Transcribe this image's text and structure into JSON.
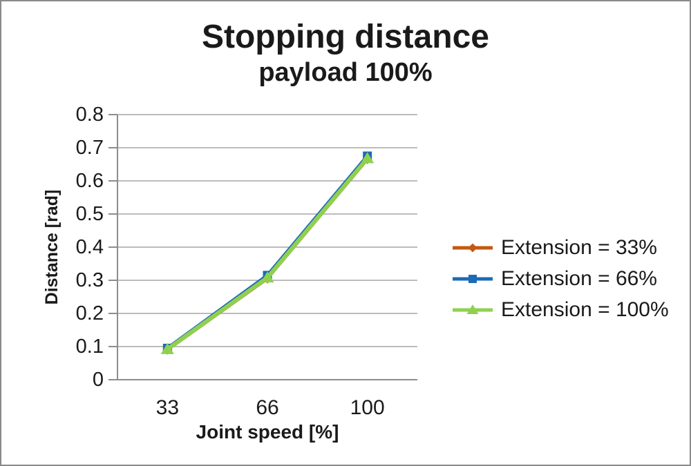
{
  "chart_data": {
    "type": "line",
    "title": "Stopping distance",
    "subtitle": "payload 100%",
    "xlabel": "Joint speed [%]",
    "ylabel": "Distance [rad]",
    "categories": [
      "33",
      "66",
      "100"
    ],
    "yticks": [
      "0",
      "0.1",
      "0.2",
      "0.3",
      "0.4",
      "0.5",
      "0.6",
      "0.7",
      "0.8"
    ],
    "ylim": [
      0,
      0.8
    ],
    "grid": "horizontal",
    "legend_position": "right",
    "colors": {
      "gridline": "#a6a6a6",
      "axis": "#8c8c8c",
      "text": "#1a1a1a"
    },
    "series": [
      {
        "name": "Extension = 33%",
        "color": "#c45911",
        "marker": "diamond",
        "values": [
          0.09,
          0.305,
          0.665
        ]
      },
      {
        "name": "Extension = 66%",
        "color": "#1b6bb8",
        "marker": "square",
        "values": [
          0.095,
          0.315,
          0.675
        ]
      },
      {
        "name": "Extension = 100%",
        "color": "#8fd14f",
        "marker": "triangle",
        "values": [
          0.092,
          0.308,
          0.668
        ]
      }
    ]
  }
}
